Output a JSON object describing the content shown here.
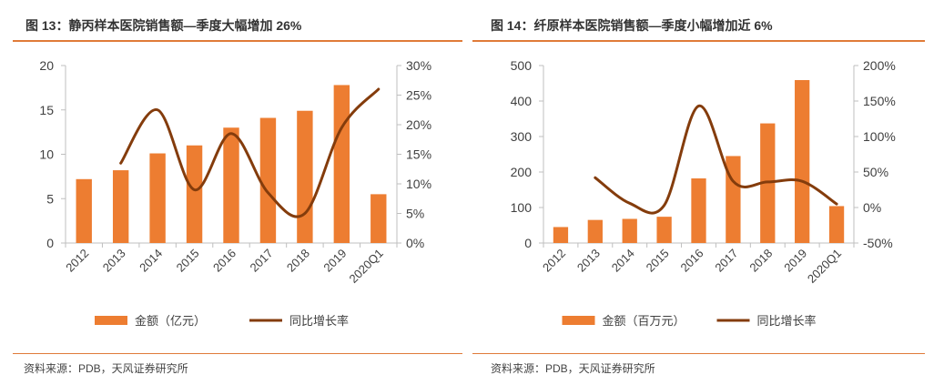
{
  "colors": {
    "bar": "#ed7d31",
    "line": "#843c0c",
    "axis": "#bfbfbf",
    "accent": "#e07b39"
  },
  "charts": [
    {
      "title": "图 13：静丙样本医院销售额—季度大幅增加 26%",
      "source": "资料来源：PDB，天风证券研究所",
      "chart_data": {
        "type": "bar",
        "categories": [
          "2012",
          "2013",
          "2014",
          "2015",
          "2016",
          "2017",
          "2018",
          "2019",
          "2020Q1"
        ],
        "series": [
          {
            "name": "金额（亿元）",
            "type": "bar",
            "axis": "left",
            "values": [
              7.2,
              8.2,
              10.1,
              11.0,
              13.0,
              14.1,
              14.9,
              17.8,
              5.5
            ]
          },
          {
            "name": "同比增长率",
            "type": "line",
            "axis": "right",
            "values": [
              null,
              13.5,
              22.5,
              9.0,
              18.5,
              8.5,
              5.0,
              19.5,
              26.0
            ]
          }
        ],
        "ylim_left": [
          0,
          20
        ],
        "yticks_left": [
          "0",
          "5",
          "10",
          "15",
          "20"
        ],
        "ylim_right": [
          0,
          30
        ],
        "yticks_right": [
          "0%",
          "5%",
          "10%",
          "15%",
          "20%",
          "25%",
          "30%"
        ],
        "legend": [
          "金额（亿元）",
          "同比增长率"
        ],
        "legend_position": "bottom"
      }
    },
    {
      "title": "图 14：纤原样本医院销售额—季度小幅增加近 6%",
      "source": "资料来源：PDB，天风证券研究所",
      "chart_data": {
        "type": "bar",
        "categories": [
          "2012",
          "2013",
          "2014",
          "2015",
          "2016",
          "2017",
          "2018",
          "2019",
          "2020Q1"
        ],
        "series": [
          {
            "name": "金额（百万元）",
            "type": "bar",
            "axis": "left",
            "values": [
              45,
              65,
              68,
              74,
              182,
              245,
              337,
              459,
              104
            ]
          },
          {
            "name": "同比增长率",
            "type": "line",
            "axis": "right",
            "values": [
              null,
              42,
              6,
              3,
              143,
              37,
              36,
              37,
              5
            ]
          }
        ],
        "ylim_left": [
          0,
          500
        ],
        "yticks_left": [
          "0",
          "100",
          "200",
          "300",
          "400",
          "500"
        ],
        "ylim_right": [
          -50,
          200
        ],
        "yticks_right": [
          "-50%",
          "0%",
          "50%",
          "100%",
          "150%",
          "200%"
        ],
        "legend": [
          "金额（百万元）",
          "同比增长率"
        ],
        "legend_position": "bottom"
      }
    }
  ]
}
